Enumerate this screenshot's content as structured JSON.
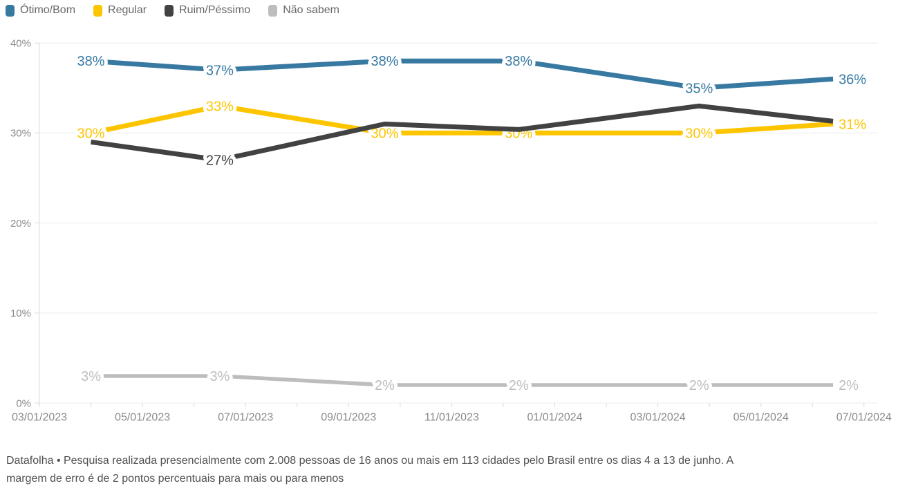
{
  "legend": {
    "items": [
      {
        "label": "Ótimo/Bom",
        "color": "#3879A2"
      },
      {
        "label": "Regular",
        "color": "#FDC500"
      },
      {
        "label": "Ruim/Péssimo",
        "color": "#424242"
      },
      {
        "label": "Não sabem",
        "color": "#BDBDBD"
      }
    ]
  },
  "chart_data": {
    "type": "line",
    "title": "",
    "xlabel": "",
    "ylabel": "",
    "grid": "horizontal",
    "legend_position": "top-left",
    "y_range": [
      0,
      40
    ],
    "y_tick_labels": [
      "0%",
      "10%",
      "20%",
      "30%",
      "40%"
    ],
    "x_tick_labels": [
      "03/01/2023",
      "05/01/2023",
      "07/01/2023",
      "09/01/2023",
      "11/01/2023",
      "01/01/2024",
      "03/01/2024",
      "05/01/2024",
      "07/01/2024"
    ],
    "x_positions_months": [
      1.0,
      3.5,
      6.7,
      9.3,
      12.8,
      15.4
    ],
    "series": [
      {
        "name": "Ótimo/Bom",
        "color": "#3879A2",
        "values": [
          38,
          37,
          38,
          38,
          35,
          36
        ],
        "point_labels": [
          "38%",
          "37%",
          "38%",
          "38%",
          "35%",
          "36%"
        ]
      },
      {
        "name": "Regular",
        "color": "#FDC500",
        "values": [
          30,
          33,
          30,
          30,
          30,
          31
        ],
        "point_labels": [
          "30%",
          "33%",
          "30%",
          "30%",
          "30%",
          "31%"
        ]
      },
      {
        "name": "Ruim/Péssimo",
        "color": "#424242",
        "values": [
          29,
          27,
          31,
          30,
          33,
          31
        ],
        "point_labels": [
          "",
          "27%",
          "",
          "",
          "",
          ""
        ]
      },
      {
        "name": "Não sabem",
        "color": "#BDBDBD",
        "values": [
          3,
          3,
          2,
          2,
          2,
          2
        ],
        "point_labels": [
          "3%",
          "3%",
          "2%",
          "2%",
          "2%",
          "2%"
        ]
      }
    ]
  },
  "footer": {
    "line1": "Datafolha • Pesquisa realizada presencialmente com 2.008 pessoas de 16 anos ou mais em 113 cidades pelo Brasil entre os dias 4 a 13 de junho. A",
    "line2": "margem de erro é de 2 pontos percentuais para mais ou para menos"
  }
}
